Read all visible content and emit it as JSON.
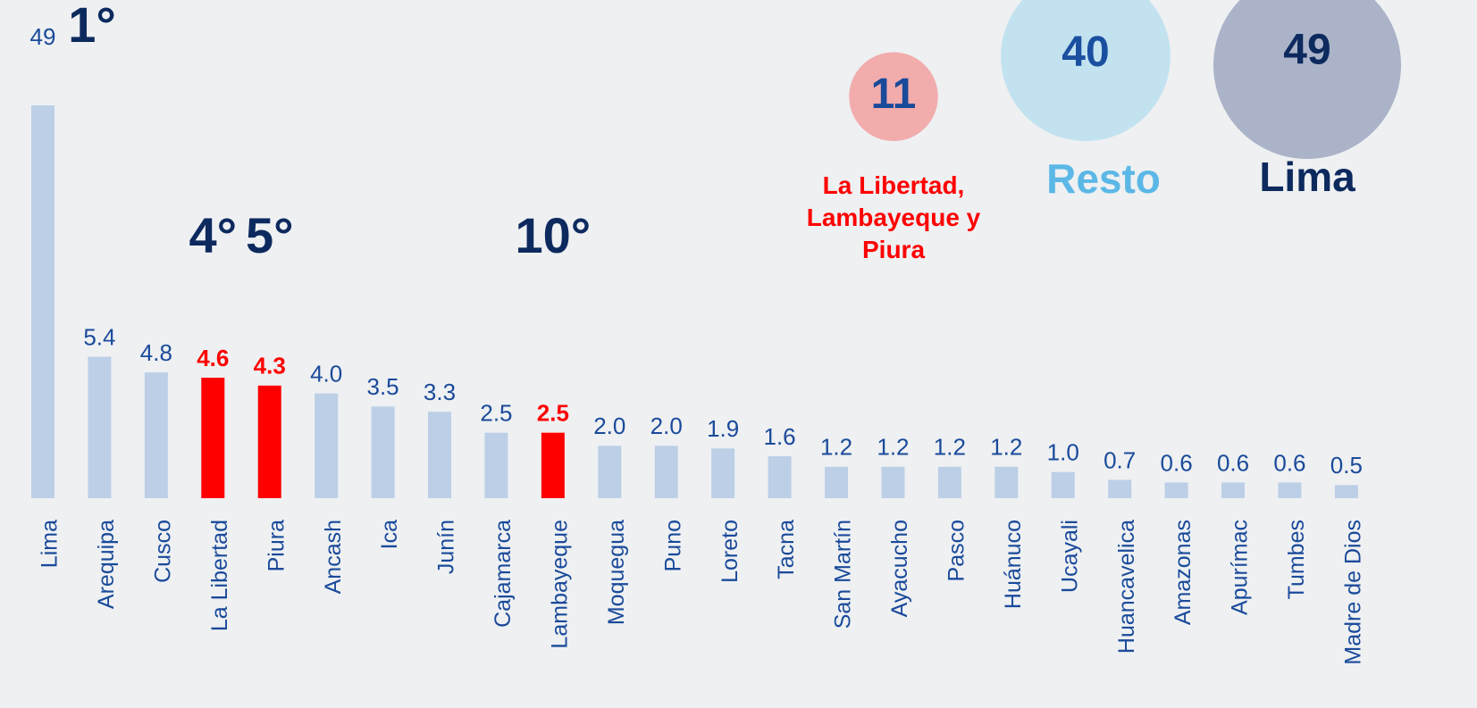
{
  "chart_data": {
    "type": "bar",
    "categories": [
      "Lima",
      "Arequipa",
      "Cusco",
      "La Libertad",
      "Piura",
      "Ancash",
      "Ica",
      "Junín",
      "Cajamarca",
      "Lambayeque",
      "Moquegua",
      "Puno",
      "Loreto",
      "Tacna",
      "San Martín",
      "Ayacucho",
      "Pasco",
      "Huánuco",
      "Ucayali",
      "Huancavelica",
      "Amazonas",
      "Apurímac",
      "Tumbes",
      "Madre de Dios"
    ],
    "values": [
      49,
      5.4,
      4.8,
      4.6,
      4.3,
      4.0,
      3.5,
      3.3,
      2.5,
      2.5,
      2.0,
      2.0,
      1.9,
      1.6,
      1.2,
      1.2,
      1.2,
      1.2,
      1.0,
      0.7,
      0.6,
      0.6,
      0.6,
      0.5
    ],
    "value_labels": [
      "49",
      "5.4",
      "4.8",
      "4.6",
      "4.3",
      "4.0",
      "3.5",
      "3.3",
      "2.5",
      "2.5",
      "2.0",
      "2.0",
      "1.9",
      "1.6",
      "1.2",
      "1.2",
      "1.2",
      "1.2",
      "1.0",
      "0.7",
      "0.6",
      "0.6",
      "0.6",
      "0.5"
    ],
    "colors": [
      "#bccfe6",
      "#bccfe6",
      "#bccfe6",
      "#ff0000",
      "#ff0000",
      "#bccfe6",
      "#bccfe6",
      "#bccfe6",
      "#bccfe6",
      "#ff0000",
      "#bccfe6",
      "#bccfe6",
      "#bccfe6",
      "#bccfe6",
      "#bccfe6",
      "#bccfe6",
      "#bccfe6",
      "#bccfe6",
      "#bccfe6",
      "#bccfe6",
      "#bccfe6",
      "#bccfe6",
      "#bccfe6",
      "#bccfe6"
    ],
    "ylim": [
      0,
      15
    ],
    "annotations": [
      {
        "text": "1°",
        "category": "Lima"
      },
      {
        "text": "4°",
        "category": "La Libertad"
      },
      {
        "text": "5°",
        "category": "Piura"
      },
      {
        "text": "10°",
        "category": "Lambayeque"
      }
    ],
    "bubbles": [
      {
        "label": "La Libertad, Lambayeque y Piura",
        "value": 11,
        "color": "#f2acac",
        "label_color": "#ff0000",
        "value_color": "#1a4a9a"
      },
      {
        "label": "Resto",
        "value": 40,
        "color": "#c2e2f0",
        "label_color": "#5bb8e6",
        "value_color": "#1a4fa0"
      },
      {
        "label": "Lima",
        "value": 49,
        "color": "#aab3c8",
        "label_color": "#0d2a5e",
        "value_color": "#0d2a5e"
      }
    ]
  }
}
